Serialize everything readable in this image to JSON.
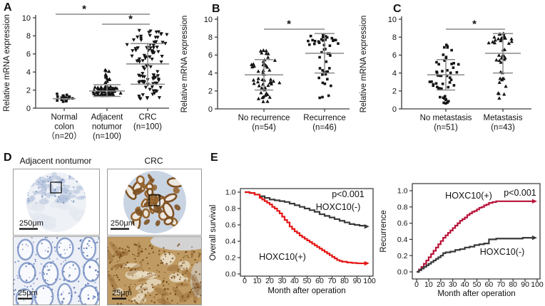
{
  "panels": {
    "A": "A",
    "B": "B",
    "C": "C",
    "D": "D",
    "E": "E"
  },
  "chart_data": [
    {
      "id": "A",
      "type": "scatter",
      "title": "",
      "ylabel": "Relative mRNA expression",
      "ylim": [
        0,
        10
      ],
      "yticks": [
        0,
        2,
        4,
        6,
        8,
        10
      ],
      "grid": false,
      "groups": [
        {
          "label_lines": [
            "Normal",
            "colon",
            "（n=20）"
          ],
          "n": 20,
          "marker": "square",
          "mean": 1.05,
          "err_lo": null,
          "err_hi": null,
          "bands": [
            {
              "lo": 0.7,
              "hi": 1.6,
              "count": 20,
              "spread": 1
            }
          ]
        },
        {
          "label_lines": [
            "Adjacent",
            "notumor",
            "(n=100)"
          ],
          "n": 100,
          "marker": "triangle-up",
          "mean": 1.9,
          "err_lo": 1.3,
          "err_hi": 2.6,
          "bands": [
            {
              "lo": 1.4,
              "hi": 2.4,
              "count": 88,
              "spread": 1
            },
            {
              "lo": 2.6,
              "hi": 4.5,
              "count": 12,
              "spread": 0.18
            }
          ]
        },
        {
          "label_lines": [
            "CRC",
            "(n=100)"
          ],
          "n": 100,
          "marker": "triangle-down",
          "mean": 4.9,
          "err_lo": 2.65,
          "err_hi": 7.15,
          "bands": [
            {
              "lo": 6.9,
              "hi": 8.6,
              "count": 24,
              "spread": 1
            },
            {
              "lo": 4.2,
              "hi": 6.8,
              "count": 34,
              "spread": 0.9
            },
            {
              "lo": 2.6,
              "hi": 4.1,
              "count": 26,
              "spread": 1
            },
            {
              "lo": 0.9,
              "hi": 2.5,
              "count": 16,
              "spread": 0.8
            }
          ]
        }
      ],
      "significance": [
        {
          "between": [
            0,
            2
          ],
          "label": "*"
        },
        {
          "between": [
            1,
            2
          ],
          "label": "*"
        }
      ]
    },
    {
      "id": "B",
      "type": "scatter",
      "title": "",
      "ylabel": "Relative mRNA expression",
      "ylim": [
        0,
        10
      ],
      "yticks": [
        0,
        2,
        4,
        6,
        8,
        10
      ],
      "grid": false,
      "groups": [
        {
          "label_lines": [
            "No recurrence",
            "(n=54)"
          ],
          "n": 54,
          "marker": "triangle-up",
          "mean": 3.8,
          "err_lo": 2.1,
          "err_hi": 5.5,
          "bands": [
            {
              "lo": 2.1,
              "hi": 5.5,
              "count": 36,
              "spread": 1
            },
            {
              "lo": 0.7,
              "hi": 2.0,
              "count": 10,
              "spread": 0.55
            },
            {
              "lo": 5.6,
              "hi": 6.8,
              "count": 8,
              "spread": 0.45
            }
          ]
        },
        {
          "label_lines": [
            "Recurrence",
            "(n=46)"
          ],
          "n": 46,
          "marker": "square",
          "mean": 6.2,
          "err_lo": 4.0,
          "err_hi": 8.4,
          "bands": [
            {
              "lo": 7.0,
              "hi": 8.5,
              "count": 22,
              "spread": 1
            },
            {
              "lo": 4.0,
              "hi": 6.9,
              "count": 14,
              "spread": 0.5
            },
            {
              "lo": 1.0,
              "hi": 3.9,
              "count": 10,
              "spread": 0.35
            }
          ]
        }
      ],
      "significance": [
        {
          "between": [
            0,
            1
          ],
          "label": "*"
        }
      ]
    },
    {
      "id": "C",
      "type": "scatter",
      "title": "",
      "ylabel": "Relative mRNA expression",
      "ylim": [
        0,
        10
      ],
      "yticks": [
        0,
        2,
        4,
        6,
        8,
        10
      ],
      "grid": false,
      "groups": [
        {
          "label_lines": [
            "No metastasis",
            "(n=51)"
          ],
          "n": 51,
          "marker": "square",
          "mean": 3.8,
          "err_lo": 2.1,
          "err_hi": 5.5,
          "bands": [
            {
              "lo": 2.1,
              "hi": 5.5,
              "count": 33,
              "spread": 1
            },
            {
              "lo": 0.6,
              "hi": 2.0,
              "count": 10,
              "spread": 0.55
            },
            {
              "lo": 5.6,
              "hi": 7.2,
              "count": 8,
              "spread": 0.45
            }
          ]
        },
        {
          "label_lines": [
            "Metastasis",
            "(n=43)"
          ],
          "n": 43,
          "marker": "triangle-up",
          "mean": 6.2,
          "err_lo": 4.0,
          "err_hi": 8.4,
          "bands": [
            {
              "lo": 7.3,
              "hi": 8.5,
              "count": 20,
              "spread": 1
            },
            {
              "lo": 4.0,
              "hi": 7.2,
              "count": 13,
              "spread": 0.45
            },
            {
              "lo": 1.1,
              "hi": 3.9,
              "count": 10,
              "spread": 0.35
            }
          ]
        }
      ],
      "significance": [
        {
          "between": [
            0,
            1
          ],
          "label": "*"
        }
      ]
    },
    {
      "id": "overall_survival",
      "type": "line",
      "kind": "kaplan-meier",
      "ylabel": "Overall survival",
      "xlabel": "Month after operation",
      "xlim": [
        0,
        100
      ],
      "ylim": [
        0,
        1
      ],
      "xticks": [
        0,
        10,
        20,
        30,
        40,
        50,
        60,
        70,
        80,
        90,
        100
      ],
      "yticks": [
        0,
        0.2,
        0.4,
        0.6,
        0.8,
        1.0
      ],
      "pvalue": "p<0.001",
      "legend_position": "on-curve",
      "grid": false,
      "series": [
        {
          "name": "HOXC10(-)",
          "color": "#3a3a3a",
          "points": [
            [
              0,
              1.0
            ],
            [
              4,
              0.99
            ],
            [
              8,
              0.97
            ],
            [
              12,
              0.95
            ],
            [
              16,
              0.93
            ],
            [
              20,
              0.91
            ],
            [
              24,
              0.9
            ],
            [
              28,
              0.89
            ],
            [
              32,
              0.88
            ],
            [
              36,
              0.86
            ],
            [
              40,
              0.84
            ],
            [
              44,
              0.82
            ],
            [
              48,
              0.8
            ],
            [
              52,
              0.78
            ],
            [
              56,
              0.76
            ],
            [
              60,
              0.73
            ],
            [
              64,
              0.71
            ],
            [
              68,
              0.69
            ],
            [
              72,
              0.67
            ],
            [
              76,
              0.65
            ],
            [
              80,
              0.63
            ],
            [
              84,
              0.61
            ],
            [
              88,
              0.6
            ],
            [
              92,
              0.59
            ],
            [
              97,
              0.58
            ]
          ]
        },
        {
          "name": "HOXC10(+)",
          "color": "#e41616",
          "points": [
            [
              0,
              1.0
            ],
            [
              4,
              0.99
            ],
            [
              8,
              0.97
            ],
            [
              12,
              0.93
            ],
            [
              14,
              0.91
            ],
            [
              16,
              0.89
            ],
            [
              18,
              0.87
            ],
            [
              20,
              0.85
            ],
            [
              22,
              0.82
            ],
            [
              24,
              0.8
            ],
            [
              26,
              0.77
            ],
            [
              28,
              0.74
            ],
            [
              30,
              0.7
            ],
            [
              32,
              0.66
            ],
            [
              34,
              0.63
            ],
            [
              36,
              0.58
            ],
            [
              38,
              0.55
            ],
            [
              40,
              0.52
            ],
            [
              42,
              0.5
            ],
            [
              44,
              0.47
            ],
            [
              46,
              0.45
            ],
            [
              48,
              0.43
            ],
            [
              50,
              0.41
            ],
            [
              52,
              0.39
            ],
            [
              54,
              0.37
            ],
            [
              56,
              0.35
            ],
            [
              58,
              0.33
            ],
            [
              60,
              0.31
            ],
            [
              62,
              0.29
            ],
            [
              64,
              0.27
            ],
            [
              66,
              0.25
            ],
            [
              68,
              0.23
            ],
            [
              70,
              0.21
            ],
            [
              72,
              0.19
            ],
            [
              74,
              0.17
            ],
            [
              76,
              0.16
            ],
            [
              78,
              0.15
            ],
            [
              82,
              0.14
            ],
            [
              86,
              0.135
            ],
            [
              90,
              0.13
            ],
            [
              97,
              0.13
            ]
          ]
        }
      ]
    },
    {
      "id": "recurrence",
      "type": "line",
      "kind": "kaplan-meier",
      "ylabel": "Recurrence",
      "xlabel": "Month after operation",
      "xlim": [
        0,
        100
      ],
      "ylim": [
        0,
        1
      ],
      "xticks": [
        0,
        10,
        20,
        30,
        40,
        50,
        60,
        70,
        80,
        90,
        100
      ],
      "yticks": [
        0,
        0.2,
        0.4,
        0.6,
        0.8,
        1.0
      ],
      "pvalue": "p<0.001",
      "legend_position": "on-curve",
      "grid": false,
      "series": [
        {
          "name": "HOXC10(+)",
          "color": "#b81339",
          "points": [
            [
              0,
              0
            ],
            [
              2,
              0.03
            ],
            [
              4,
              0.06
            ],
            [
              6,
              0.1
            ],
            [
              8,
              0.14
            ],
            [
              10,
              0.18
            ],
            [
              12,
              0.22
            ],
            [
              14,
              0.26
            ],
            [
              16,
              0.3
            ],
            [
              18,
              0.34
            ],
            [
              20,
              0.38
            ],
            [
              22,
              0.42
            ],
            [
              24,
              0.45
            ],
            [
              26,
              0.48
            ],
            [
              28,
              0.51
            ],
            [
              30,
              0.54
            ],
            [
              32,
              0.57
            ],
            [
              34,
              0.6
            ],
            [
              36,
              0.63
            ],
            [
              38,
              0.65
            ],
            [
              40,
              0.67
            ],
            [
              42,
              0.7
            ],
            [
              44,
              0.72
            ],
            [
              46,
              0.74
            ],
            [
              48,
              0.75
            ],
            [
              50,
              0.77
            ],
            [
              52,
              0.79
            ],
            [
              54,
              0.8
            ],
            [
              56,
              0.82
            ],
            [
              58,
              0.83
            ],
            [
              60,
              0.85
            ],
            [
              63,
              0.86
            ],
            [
              66,
              0.87
            ],
            [
              97,
              0.87
            ]
          ]
        },
        {
          "name": "HOXC10(-)",
          "color": "#3a3a3a",
          "points": [
            [
              0,
              0
            ],
            [
              2,
              0.02
            ],
            [
              4,
              0.04
            ],
            [
              6,
              0.06
            ],
            [
              8,
              0.08
            ],
            [
              10,
              0.1
            ],
            [
              12,
              0.12
            ],
            [
              14,
              0.14
            ],
            [
              16,
              0.16
            ],
            [
              18,
              0.18
            ],
            [
              20,
              0.2
            ],
            [
              22,
              0.23
            ],
            [
              24,
              0.24
            ],
            [
              28,
              0.25
            ],
            [
              32,
              0.27
            ],
            [
              36,
              0.28
            ],
            [
              40,
              0.3
            ],
            [
              44,
              0.31
            ],
            [
              48,
              0.33
            ],
            [
              52,
              0.34
            ],
            [
              56,
              0.35
            ],
            [
              60,
              0.4
            ],
            [
              66,
              0.41
            ],
            [
              78,
              0.41
            ],
            [
              88,
              0.42
            ],
            [
              97,
              0.42
            ]
          ]
        }
      ]
    }
  ],
  "panelD": {
    "col_titles": [
      "Adjacent nontumor",
      "CRC"
    ],
    "scalebar_top": "250μm",
    "scalebar_bottom": "25μm",
    "palette": {
      "border": "#9a9a9a",
      "box": "#111111",
      "nontumor_core": {
        "bg": "#eef1f6",
        "tissue_top": "#b3c1db",
        "dot": "#7d93c0",
        "pale": "#e2e7ef"
      },
      "crc_core": {
        "bg": "#c9d4e3",
        "gland": "#96652e",
        "gland_dark": "#7e5222",
        "lumen": "#ece7df"
      },
      "nontumor_mag": {
        "bg": "#edf0f7",
        "ring": "#8aa0cc",
        "lumen": "#f9fafd",
        "dot": "#5b74b4"
      },
      "crc_mag": {
        "bg": "#bf9a62",
        "dot": "#6b4414",
        "patch": "#e8dcc4",
        "stroma": "#d6dde7"
      }
    }
  }
}
